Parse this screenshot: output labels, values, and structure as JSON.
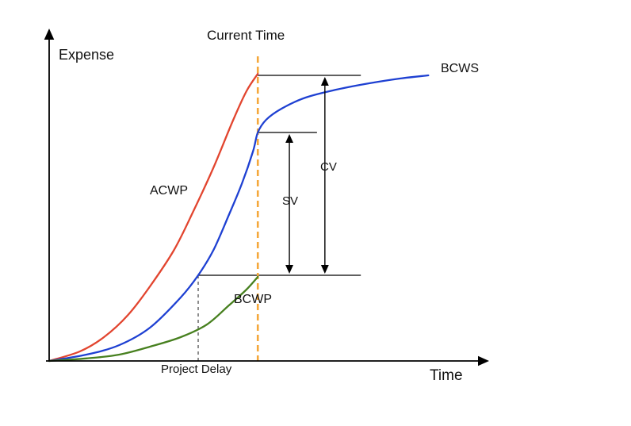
{
  "chart": {
    "y_axis_label": "Expense",
    "x_axis_label": "Time",
    "current_time_label": "Current Time",
    "project_delay_label": "Project Delay",
    "series_labels": {
      "acwp": "ACWP",
      "bcws": "BCWS",
      "bcwp": "BCWP"
    },
    "variance_labels": {
      "sv": "SV",
      "cv": "CV"
    }
  },
  "colors": {
    "acwp": "#e2452f",
    "bcws": "#1e40d2",
    "bcwp": "#47801f",
    "current_time_line": "#f4a83b",
    "project_delay_line": "#444444",
    "axis": "#000000",
    "reference_line": "#000000"
  },
  "chart_data": {
    "type": "line",
    "title": "",
    "xlabel": "Time",
    "ylabel": "Expense",
    "x_range": [
      0,
      10
    ],
    "y_range": [
      0,
      10
    ],
    "grid": false,
    "legend": "on-chart labels",
    "series": [
      {
        "name": "ACWP",
        "color": "#e2452f",
        "points": [
          [
            0,
            0
          ],
          [
            0.7,
            0.3
          ],
          [
            1.25,
            0.75
          ],
          [
            1.8,
            1.45
          ],
          [
            2.3,
            2.35
          ],
          [
            2.85,
            3.5
          ],
          [
            3.3,
            4.75
          ],
          [
            3.75,
            6.1
          ],
          [
            4.2,
            7.6
          ],
          [
            4.5,
            8.5
          ],
          [
            4.76,
            9.05
          ]
        ]
      },
      {
        "name": "BCWS",
        "color": "#1e40d2",
        "points": [
          [
            0,
            0
          ],
          [
            0.85,
            0.2
          ],
          [
            1.6,
            0.5
          ],
          [
            2.3,
            1.05
          ],
          [
            3.0,
            2.0
          ],
          [
            3.4,
            2.7
          ],
          [
            3.75,
            3.5
          ],
          [
            4.1,
            4.6
          ],
          [
            4.4,
            5.6
          ],
          [
            4.65,
            6.6
          ],
          [
            4.76,
            7.2
          ],
          [
            4.95,
            7.6
          ],
          [
            5.3,
            7.95
          ],
          [
            5.85,
            8.3
          ],
          [
            6.55,
            8.55
          ],
          [
            7.3,
            8.75
          ],
          [
            8.0,
            8.9
          ],
          [
            8.65,
            9.0
          ]
        ]
      },
      {
        "name": "BCWP",
        "color": "#47801f",
        "points": [
          [
            0,
            0
          ],
          [
            0.85,
            0.08
          ],
          [
            1.6,
            0.2
          ],
          [
            2.3,
            0.45
          ],
          [
            3.0,
            0.75
          ],
          [
            3.6,
            1.15
          ],
          [
            4.1,
            1.75
          ],
          [
            4.5,
            2.25
          ],
          [
            4.76,
            2.65
          ]
        ]
      }
    ],
    "annotations": {
      "current_time": {
        "x": 4.76,
        "y_top": 9.6,
        "style": "dashed",
        "color": "#f4a83b",
        "label": "Current Time"
      },
      "project_delay": {
        "x": 3.4,
        "y_top": 2.7,
        "style": "dashed",
        "color": "#444444",
        "label": "Project Delay"
      },
      "reference_lines": [
        {
          "y": 9.0,
          "x1": 4.76,
          "x2": 7.11
        },
        {
          "y": 7.2,
          "x1": 4.76,
          "x2": 6.11
        },
        {
          "y": 2.7,
          "x1": 3.4,
          "x2": 7.11
        }
      ],
      "sv_arrow": {
        "label": "SV",
        "x": 5.48,
        "y1": 7.2,
        "y2": 2.7
      },
      "cv_arrow": {
        "label": "CV",
        "x": 6.29,
        "y1": 9.0,
        "y2": 2.7
      }
    }
  }
}
